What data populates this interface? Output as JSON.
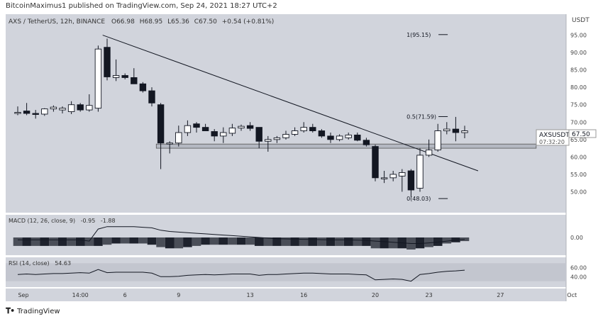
{
  "header": {
    "publisher": "BitcoinMaximus1 published on TradingView.com, Sep 24, 2021 18:27 UTC+2"
  },
  "footer": {
    "brand": "TradingView"
  },
  "theme": {
    "panel_bg": "#d1d4dc",
    "candle_up": "#ffffff",
    "candle_down": "#131722",
    "line": "#131722",
    "support_band": "#b4b8c2"
  },
  "main": {
    "legend": {
      "symbol": "AXS / TetherUS, 12h, BINANCE",
      "o_label": "O",
      "o_value": "66.98",
      "h_label": "H",
      "h_value": "68.95",
      "l_label": "L",
      "l_value": "65.36",
      "c_label": "C",
      "c_value": "67.50",
      "change": "+0.54 (+0.81%)"
    },
    "price_tag": {
      "symbol": "AXSUSDT",
      "price": "67.50",
      "countdown": "07:32:20"
    },
    "unit_label": "USDT",
    "fib_levels": [
      {
        "label": "1(95.15)",
        "value": 95.15
      },
      {
        "label": "0.5(71.59)",
        "value": 71.59
      },
      {
        "label": "0(48.03)",
        "value": 48.03
      }
    ]
  },
  "macd_panel": {
    "legend": "MACD (12, 26, close, 9)",
    "v1": "-0.95",
    "v2": "-1.88"
  },
  "rsi_panel": {
    "legend": "RSI (14, close)",
    "value": "54.63"
  },
  "chart_data": {
    "type": "candlestick",
    "title": "AXS / TetherUS, 12h, BINANCE",
    "y_ticks": [
      "95.00",
      "90.00",
      "85.00",
      "80.00",
      "75.00",
      "70.00",
      "65.00",
      "60.00",
      "55.00",
      "50.00"
    ],
    "ylim": [
      45,
      100
    ],
    "x_ticks": [
      {
        "label": "Sep",
        "index": 0
      },
      {
        "label": "14:00",
        "index": 7
      },
      {
        "label": "6",
        "index": 12
      },
      {
        "label": "9",
        "index": 18
      },
      {
        "label": "13",
        "index": 26
      },
      {
        "label": "16",
        "index": 32
      },
      {
        "label": "20",
        "index": 40
      },
      {
        "label": "23",
        "index": 46
      },
      {
        "label": "27",
        "index": 54
      },
      {
        "label": "Oct",
        "index": 62
      }
    ],
    "candles": [
      {
        "o": 72.8,
        "h": 74.5,
        "l": 72.0,
        "c": 72.8
      },
      {
        "o": 73.2,
        "h": 75.5,
        "l": 72.0,
        "c": 72.5
      },
      {
        "o": 72.5,
        "h": 73.5,
        "l": 71.0,
        "c": 72.3
      },
      {
        "o": 72.3,
        "h": 74.0,
        "l": 71.8,
        "c": 73.8
      },
      {
        "o": 73.8,
        "h": 74.8,
        "l": 73.0,
        "c": 74.3
      },
      {
        "o": 73.5,
        "h": 74.5,
        "l": 72.5,
        "c": 74.0
      },
      {
        "o": 73.0,
        "h": 76.0,
        "l": 72.3,
        "c": 75.0
      },
      {
        "o": 75.0,
        "h": 75.5,
        "l": 73.0,
        "c": 73.5
      },
      {
        "o": 73.5,
        "h": 78.0,
        "l": 73.0,
        "c": 74.8
      },
      {
        "o": 74.0,
        "h": 92.0,
        "l": 73.0,
        "c": 91.0
      },
      {
        "o": 91.5,
        "h": 94.0,
        "l": 82.0,
        "c": 83.0
      },
      {
        "o": 82.8,
        "h": 88.0,
        "l": 81.8,
        "c": 83.4
      },
      {
        "o": 83.4,
        "h": 84.0,
        "l": 82.3,
        "c": 82.8
      },
      {
        "o": 82.8,
        "h": 85.5,
        "l": 81.0,
        "c": 81.0
      },
      {
        "o": 81.0,
        "h": 81.5,
        "l": 78.5,
        "c": 79.0
      },
      {
        "o": 79.0,
        "h": 80.0,
        "l": 74.5,
        "c": 75.5
      },
      {
        "o": 75.0,
        "h": 75.5,
        "l": 56.5,
        "c": 64.0
      },
      {
        "o": 64.0,
        "h": 64.5,
        "l": 61.0,
        "c": 64.0
      },
      {
        "o": 64.0,
        "h": 69.0,
        "l": 63.0,
        "c": 67.0
      },
      {
        "o": 67.0,
        "h": 70.5,
        "l": 66.0,
        "c": 69.0
      },
      {
        "o": 69.5,
        "h": 70.0,
        "l": 67.0,
        "c": 68.5
      },
      {
        "o": 68.5,
        "h": 69.5,
        "l": 67.5,
        "c": 67.5
      },
      {
        "o": 67.3,
        "h": 68.0,
        "l": 64.5,
        "c": 66.0
      },
      {
        "o": 66.0,
        "h": 68.5,
        "l": 64.0,
        "c": 67.0
      },
      {
        "o": 66.8,
        "h": 69.5,
        "l": 66.0,
        "c": 68.3
      },
      {
        "o": 68.3,
        "h": 69.3,
        "l": 67.5,
        "c": 68.8
      },
      {
        "o": 69.0,
        "h": 70.0,
        "l": 67.5,
        "c": 68.2
      },
      {
        "o": 68.5,
        "h": 68.5,
        "l": 62.5,
        "c": 64.5
      },
      {
        "o": 64.5,
        "h": 66.0,
        "l": 61.5,
        "c": 65.0
      },
      {
        "o": 65.0,
        "h": 66.0,
        "l": 64.0,
        "c": 65.5
      },
      {
        "o": 65.5,
        "h": 67.5,
        "l": 65.0,
        "c": 66.5
      },
      {
        "o": 66.5,
        "h": 68.5,
        "l": 66.0,
        "c": 67.5
      },
      {
        "o": 67.5,
        "h": 70.0,
        "l": 67.0,
        "c": 68.5
      },
      {
        "o": 68.5,
        "h": 69.5,
        "l": 67.0,
        "c": 67.5
      },
      {
        "o": 67.5,
        "h": 68.0,
        "l": 65.5,
        "c": 66.0
      },
      {
        "o": 66.0,
        "h": 67.0,
        "l": 64.0,
        "c": 65.0
      },
      {
        "o": 65.0,
        "h": 66.5,
        "l": 64.5,
        "c": 66.0
      },
      {
        "o": 65.5,
        "h": 67.0,
        "l": 65.0,
        "c": 66.3
      },
      {
        "o": 66.3,
        "h": 67.0,
        "l": 64.5,
        "c": 64.8
      },
      {
        "o": 64.8,
        "h": 65.5,
        "l": 63.0,
        "c": 63.5
      },
      {
        "o": 63.0,
        "h": 63.5,
        "l": 53.0,
        "c": 54.0
      },
      {
        "o": 54.0,
        "h": 56.0,
        "l": 52.5,
        "c": 54.0
      },
      {
        "o": 54.0,
        "h": 56.0,
        "l": 53.0,
        "c": 55.0
      },
      {
        "o": 54.5,
        "h": 56.5,
        "l": 50.0,
        "c": 55.5
      },
      {
        "o": 56.0,
        "h": 56.5,
        "l": 48.5,
        "c": 50.5
      },
      {
        "o": 51.0,
        "h": 62.5,
        "l": 50.0,
        "c": 60.5
      },
      {
        "o": 60.5,
        "h": 65.0,
        "l": 60.0,
        "c": 62.0
      },
      {
        "o": 62.0,
        "h": 69.5,
        "l": 61.5,
        "c": 67.5
      },
      {
        "o": 67.5,
        "h": 70.0,
        "l": 66.5,
        "c": 68.0
      },
      {
        "o": 68.0,
        "h": 71.5,
        "l": 64.5,
        "c": 67.0
      },
      {
        "o": 66.98,
        "h": 68.95,
        "l": 65.36,
        "c": 67.5
      }
    ],
    "trendline": [
      {
        "index": 9.5,
        "value": 95.0
      },
      {
        "index": 51.5,
        "value": 56.0
      }
    ],
    "support_zone": {
      "from_index": 15.5,
      "to_index": 58,
      "low": 62.5,
      "high": 63.7
    },
    "macd": {
      "line": [
        -0.2,
        -0.2,
        -0.2,
        -0.2,
        -0.2,
        -0.2,
        -0.2,
        -0.2,
        -0.3,
        0.7,
        0.9,
        0.9,
        0.9,
        0.9,
        0.85,
        0.8,
        0.6,
        0.5,
        0.45,
        0.4,
        0.35,
        0.3,
        0.25,
        0.2,
        0.15,
        0.1,
        0.05,
        0.0,
        -0.05,
        -0.1,
        -0.12,
        -0.14,
        -0.15,
        -0.16,
        -0.18,
        -0.2,
        -0.2,
        -0.2,
        -0.22,
        -0.24,
        -0.3,
        -0.35,
        -0.4,
        -0.45,
        -0.5,
        -0.5,
        -0.45,
        -0.38,
        -0.3,
        -0.22,
        -0.15
      ],
      "hist": [
        -0.7,
        -0.7,
        -0.7,
        -0.7,
        -0.7,
        -0.7,
        -0.7,
        -0.7,
        -0.7,
        -0.7,
        -0.6,
        -0.5,
        -0.5,
        -0.5,
        -0.5,
        -0.6,
        -0.8,
        -0.9,
        -0.9,
        -0.8,
        -0.7,
        -0.6,
        -0.6,
        -0.6,
        -0.6,
        -0.6,
        -0.6,
        -0.7,
        -0.7,
        -0.7,
        -0.7,
        -0.7,
        -0.7,
        -0.7,
        -0.7,
        -0.7,
        -0.7,
        -0.7,
        -0.7,
        -0.7,
        -0.9,
        -0.9,
        -0.9,
        -0.9,
        -1.0,
        -0.9,
        -0.8,
        -0.7,
        -0.5,
        -0.4,
        -0.3
      ]
    },
    "rsi": {
      "levels": [
        70,
        30
      ],
      "y_ticks": [
        "60.00",
        "40.00"
      ],
      "values": [
        45,
        46,
        45,
        46,
        47,
        47,
        48,
        49,
        48,
        56,
        49,
        50,
        50,
        50,
        50,
        48,
        40,
        40,
        41,
        43,
        44,
        45,
        44,
        45,
        46,
        46,
        46,
        43,
        45,
        45,
        46,
        47,
        48,
        48,
        47,
        46,
        46,
        46,
        45,
        44,
        33,
        34,
        35,
        34,
        30,
        45,
        47,
        50,
        52,
        53,
        54.63
      ]
    }
  }
}
